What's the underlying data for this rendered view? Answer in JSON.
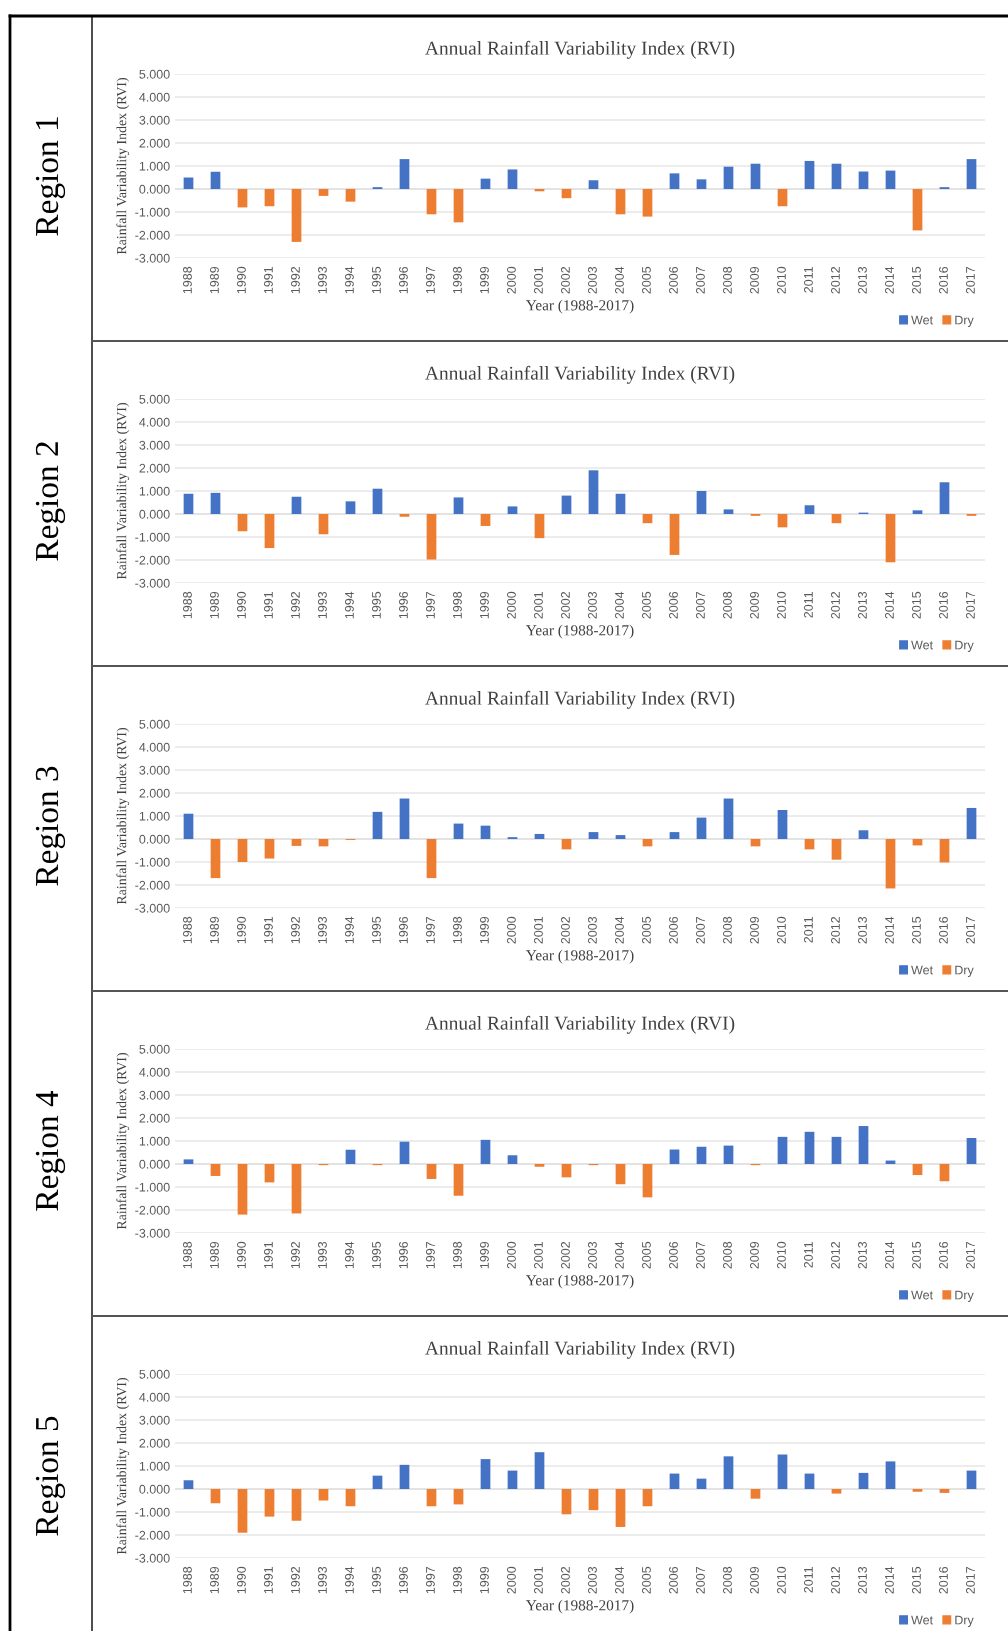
{
  "chart_data": [
    {
      "type": "bar",
      "title": "Annual Rainfall Variability Index (RVI)",
      "xlabel": "Year (1988-2017)",
      "ylabel": "Rainfall Variability Index (RVI)",
      "annotations": [
        "Region 1"
      ],
      "categories": [
        "1988",
        "1989",
        "1990",
        "1991",
        "1992",
        "1993",
        "1994",
        "1995",
        "1996",
        "1997",
        "1998",
        "1999",
        "2000",
        "2001",
        "2002",
        "2003",
        "2004",
        "2005",
        "2006",
        "2007",
        "2008",
        "2009",
        "2010",
        "2011",
        "2012",
        "2013",
        "2014",
        "2015",
        "2016",
        "2017"
      ],
      "series": [
        {
          "name": "Wet",
          "color": "#4472c4",
          "values": [
            0.5,
            0.75,
            null,
            null,
            null,
            null,
            null,
            0.08,
            1.3,
            null,
            null,
            0.45,
            0.85,
            null,
            null,
            0.38,
            null,
            null,
            0.68,
            0.42,
            0.97,
            1.1,
            null,
            1.22,
            1.1,
            0.76,
            0.8,
            null,
            0.08,
            1.3
          ]
        },
        {
          "name": "Dry",
          "color": "#ed7d31",
          "values": [
            null,
            null,
            -0.8,
            -0.75,
            -2.3,
            -0.3,
            -0.55,
            null,
            null,
            -1.1,
            -1.45,
            null,
            null,
            -0.1,
            -0.4,
            null,
            -1.1,
            -1.2,
            null,
            null,
            null,
            null,
            -0.75,
            null,
            null,
            null,
            null,
            -1.8,
            null,
            null
          ]
        }
      ],
      "stacked": true,
      "ylim": [
        -3,
        5
      ],
      "yticks": [
        {
          "value": -3,
          "label": "-3.000"
        },
        {
          "value": -2,
          "label": "-2.000"
        },
        {
          "value": -1,
          "label": "-1.000"
        },
        {
          "value": 0,
          "label": "0.000"
        },
        {
          "value": 1,
          "label": "1.000"
        },
        {
          "value": 2,
          "label": "2.000"
        },
        {
          "value": 3,
          "label": "3.000"
        },
        {
          "value": 4,
          "label": "4.000"
        },
        {
          "value": 5,
          "label": "5.000"
        }
      ],
      "grid": "y",
      "legend": "bottom right"
    },
    {
      "type": "bar",
      "title": "Annual Rainfall Variability Index (RVI)",
      "xlabel": "Year (1988-2017)",
      "ylabel": "Rainfall Variability Index (RVI)",
      "annotations": [
        "Region 2"
      ],
      "categories": [
        "1988",
        "1989",
        "1990",
        "1991",
        "1992",
        "1993",
        "1994",
        "1995",
        "1996",
        "1997",
        "1998",
        "1999",
        "2000",
        "2001",
        "2002",
        "2003",
        "2004",
        "2005",
        "2006",
        "2007",
        "2008",
        "2009",
        "2010",
        "2011",
        "2012",
        "2013",
        "2014",
        "2015",
        "2016",
        "2017"
      ],
      "series": [
        {
          "name": "Wet",
          "color": "#4472c4",
          "values": [
            0.88,
            0.92,
            null,
            null,
            0.75,
            null,
            0.55,
            1.1,
            null,
            null,
            0.72,
            null,
            0.33,
            null,
            0.8,
            1.9,
            0.88,
            null,
            null,
            1.0,
            0.2,
            null,
            null,
            0.38,
            null,
            0.06,
            null,
            0.16,
            1.38,
            null
          ]
        },
        {
          "name": "Dry",
          "color": "#ed7d31",
          "values": [
            null,
            null,
            -0.75,
            -1.48,
            null,
            -0.88,
            null,
            null,
            -0.12,
            -1.98,
            null,
            -0.52,
            null,
            -1.05,
            null,
            null,
            null,
            -0.4,
            -1.78,
            null,
            null,
            -0.08,
            -0.58,
            null,
            -0.4,
            null,
            -2.1,
            null,
            null,
            -0.08
          ]
        }
      ],
      "stacked": true,
      "ylim": [
        -3,
        5
      ],
      "yticks": [
        {
          "value": -3,
          "label": "-3.000"
        },
        {
          "value": -2,
          "label": "-2.000"
        },
        {
          "value": -1,
          "label": "-1.000"
        },
        {
          "value": 0,
          "label": "0.000"
        },
        {
          "value": 1,
          "label": "1.000"
        },
        {
          "value": 2,
          "label": "2.000"
        },
        {
          "value": 3,
          "label": "3.000"
        },
        {
          "value": 4,
          "label": "4.000"
        },
        {
          "value": 5,
          "label": "5.000"
        }
      ],
      "grid": "y",
      "legend": "bottom right"
    },
    {
      "type": "bar",
      "title": "Annual Rainfall Variability Index (RVI)",
      "xlabel": "Year (1988-2017)",
      "ylabel": "Rainfall Variability Index (RVI)",
      "annotations": [
        "Region 3"
      ],
      "categories": [
        "1988",
        "1989",
        "1990",
        "1991",
        "1992",
        "1993",
        "1994",
        "1995",
        "1996",
        "1997",
        "1998",
        "1999",
        "2000",
        "2001",
        "2002",
        "2003",
        "2004",
        "2005",
        "2006",
        "2007",
        "2008",
        "2009",
        "2010",
        "2011",
        "2012",
        "2013",
        "2014",
        "2015",
        "2016",
        "2017"
      ],
      "series": [
        {
          "name": "Wet",
          "color": "#4472c4",
          "values": [
            1.1,
            null,
            null,
            null,
            null,
            null,
            null,
            1.18,
            1.76,
            null,
            0.67,
            0.58,
            0.08,
            0.22,
            null,
            0.3,
            0.17,
            null,
            0.3,
            0.93,
            1.76,
            null,
            1.26,
            null,
            null,
            0.38,
            null,
            null,
            null,
            1.35
          ]
        },
        {
          "name": "Dry",
          "color": "#ed7d31",
          "values": [
            null,
            -1.7,
            -1.0,
            -0.85,
            -0.3,
            -0.32,
            -0.04,
            null,
            null,
            -1.7,
            null,
            null,
            null,
            null,
            -0.45,
            null,
            null,
            -0.32,
            null,
            null,
            null,
            -0.32,
            null,
            -0.45,
            -0.9,
            null,
            -2.15,
            -0.28,
            -1.02,
            null
          ]
        }
      ],
      "stacked": true,
      "ylim": [
        -3,
        5
      ],
      "yticks": [
        {
          "value": -3,
          "label": "-3.000"
        },
        {
          "value": -2,
          "label": "-2.000"
        },
        {
          "value": -1,
          "label": "-1.000"
        },
        {
          "value": 0,
          "label": "0.000"
        },
        {
          "value": 1,
          "label": "1.000"
        },
        {
          "value": 2,
          "label": "2.000"
        },
        {
          "value": 3,
          "label": "3.000"
        },
        {
          "value": 4,
          "label": "4.000"
        },
        {
          "value": 5,
          "label": "5.000"
        }
      ],
      "grid": "y",
      "legend": "bottom right"
    },
    {
      "type": "bar",
      "title": "Annual Rainfall Variability Index (RVI)",
      "xlabel": "Year (1988-2017)",
      "ylabel": "Rainfall Variability Index (RVI)",
      "annotations": [
        "Region 4"
      ],
      "categories": [
        "1988",
        "1989",
        "1990",
        "1991",
        "1992",
        "1993",
        "1994",
        "1995",
        "1996",
        "1997",
        "1998",
        "1999",
        "2000",
        "2001",
        "2002",
        "2003",
        "2004",
        "2005",
        "2006",
        "2007",
        "2008",
        "2009",
        "2010",
        "2011",
        "2012",
        "2013",
        "2014",
        "2015",
        "2016",
        "2017"
      ],
      "series": [
        {
          "name": "Wet",
          "color": "#4472c4",
          "values": [
            0.2,
            null,
            null,
            null,
            null,
            null,
            0.62,
            null,
            0.97,
            null,
            null,
            1.05,
            0.38,
            null,
            null,
            null,
            null,
            null,
            0.63,
            0.75,
            0.8,
            null,
            1.18,
            1.4,
            1.18,
            1.65,
            0.15,
            null,
            null,
            1.13
          ]
        },
        {
          "name": "Dry",
          "color": "#ed7d31",
          "values": [
            null,
            -0.52,
            -2.2,
            -0.8,
            -2.15,
            -0.05,
            null,
            -0.05,
            null,
            -0.65,
            -1.38,
            null,
            null,
            -0.12,
            -0.58,
            -0.05,
            -0.88,
            -1.45,
            null,
            null,
            null,
            -0.05,
            null,
            null,
            null,
            null,
            null,
            -0.48,
            -0.75,
            null
          ]
        }
      ],
      "stacked": true,
      "ylim": [
        -3,
        5
      ],
      "yticks": [
        {
          "value": -3,
          "label": "-3.000"
        },
        {
          "value": -2,
          "label": "-2.000"
        },
        {
          "value": -1,
          "label": "-1.000"
        },
        {
          "value": 0,
          "label": "0.000"
        },
        {
          "value": 1,
          "label": "1.000"
        },
        {
          "value": 2,
          "label": "2.000"
        },
        {
          "value": 3,
          "label": "3.000"
        },
        {
          "value": 4,
          "label": "4.000"
        },
        {
          "value": 5,
          "label": "5.000"
        }
      ],
      "grid": "y",
      "legend": "bottom right"
    },
    {
      "type": "bar",
      "title": "Annual Rainfall Variability Index (RVI)",
      "xlabel": "Year (1988-2017)",
      "ylabel": "Rainfall Variability Index (RVI)",
      "annotations": [
        "Region 5"
      ],
      "categories": [
        "1988",
        "1989",
        "1990",
        "1991",
        "1992",
        "1993",
        "1994",
        "1995",
        "1996",
        "1997",
        "1998",
        "1999",
        "2000",
        "2001",
        "2002",
        "2003",
        "2004",
        "2005",
        "2006",
        "2007",
        "2008",
        "2009",
        "2010",
        "2011",
        "2012",
        "2013",
        "2014",
        "2015",
        "2016",
        "2017"
      ],
      "series": [
        {
          "name": "Wet",
          "color": "#4472c4",
          "values": [
            0.38,
            null,
            null,
            null,
            null,
            null,
            null,
            0.58,
            1.05,
            null,
            null,
            1.3,
            0.8,
            1.6,
            null,
            null,
            null,
            null,
            0.67,
            0.45,
            1.42,
            null,
            1.5,
            0.67,
            null,
            0.7,
            1.2,
            null,
            null,
            0.8
          ]
        },
        {
          "name": "Dry",
          "color": "#ed7d31",
          "values": [
            null,
            -0.62,
            -1.9,
            -1.2,
            -1.38,
            -0.5,
            -0.75,
            null,
            null,
            -0.75,
            -0.67,
            null,
            null,
            null,
            -1.1,
            -0.92,
            -1.65,
            -0.75,
            null,
            null,
            null,
            -0.42,
            null,
            null,
            -0.2,
            null,
            null,
            -0.12,
            -0.17,
            null
          ]
        }
      ],
      "stacked": true,
      "ylim": [
        -3,
        5
      ],
      "yticks": [
        {
          "value": -3,
          "label": "-3.000"
        },
        {
          "value": -2,
          "label": "-2.000"
        },
        {
          "value": -1,
          "label": "-1.000"
        },
        {
          "value": 0,
          "label": "0.000"
        },
        {
          "value": 1,
          "label": "1.000"
        },
        {
          "value": 2,
          "label": "2.000"
        },
        {
          "value": 3,
          "label": "3.000"
        },
        {
          "value": 4,
          "label": "4.000"
        },
        {
          "value": 5,
          "label": "5.000"
        }
      ],
      "grid": "y",
      "legend": "bottom right"
    }
  ]
}
